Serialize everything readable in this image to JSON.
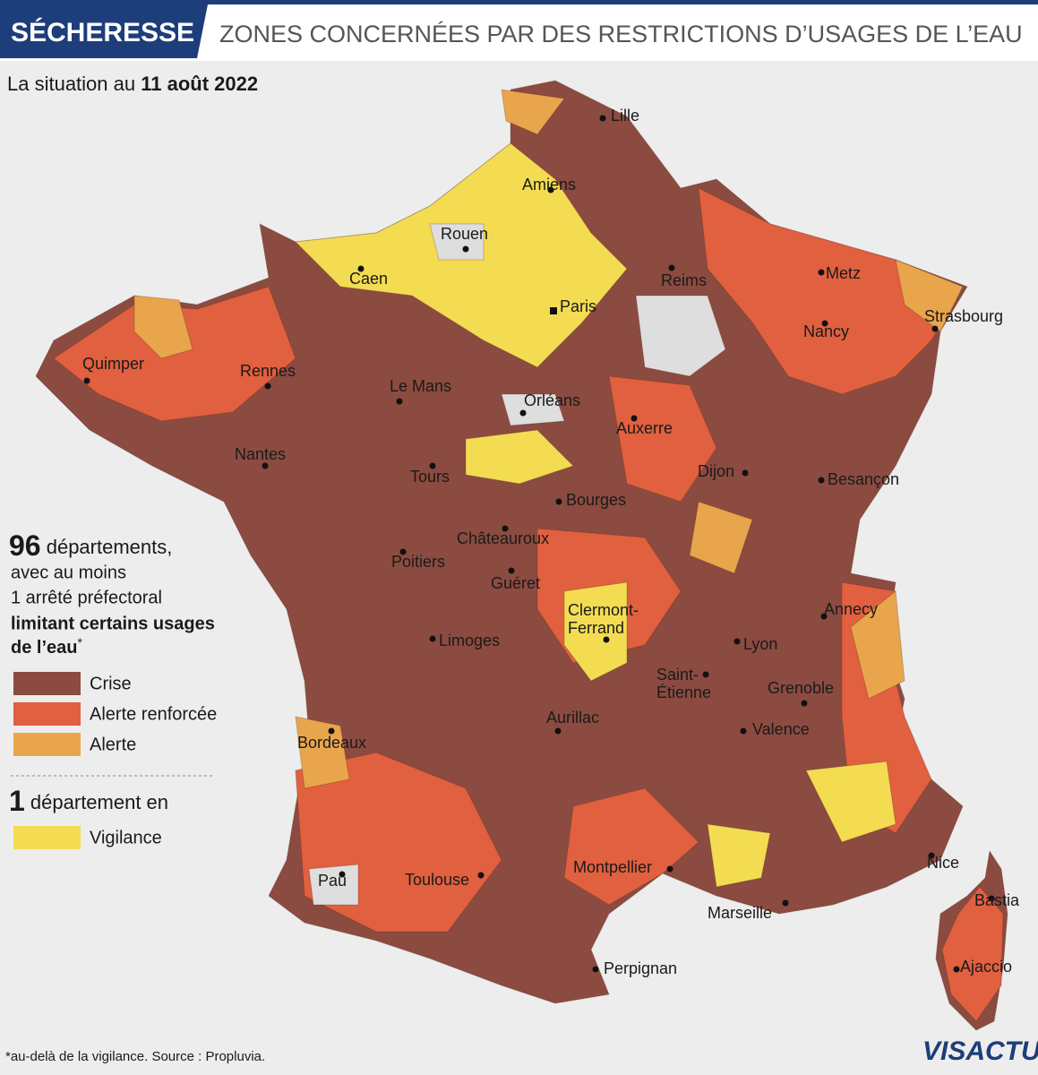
{
  "header": {
    "tag": "SÉCHERESSE",
    "title": "ZONES CONCERNÉES PAR DES RESTRICTIONS D’USAGES DE L’EAU"
  },
  "subtitle": {
    "prefix": "La situation au",
    "date": "11 août 2022"
  },
  "legend": {
    "count": 96,
    "count_text": "départements,",
    "line2": "avec au moins",
    "line3": "1 arrêté préfectoral",
    "bold1": "limitant certains usages",
    "bold2": "de l’eau",
    "asterisk": "*",
    "items": [
      {
        "label": "Crise",
        "color": "#8c4b40"
      },
      {
        "label": "Alerte renforcée",
        "color": "#e0603f"
      },
      {
        "label": "Alerte",
        "color": "#e9a54c"
      }
    ],
    "count2": 1,
    "count2_text": "département en",
    "vigilance": {
      "label": "Vigilance",
      "color": "#f3dc52"
    }
  },
  "cities": [
    [
      "Lille"
    ],
    [
      "Amiens"
    ],
    [
      "Rouen"
    ],
    [
      "Caen"
    ],
    [
      "Reims"
    ],
    [
      "Metz"
    ],
    [
      "Paris"
    ],
    [
      "Strasbourg"
    ],
    [
      "Nancy"
    ],
    [
      "Quimper"
    ],
    [
      "Rennes"
    ],
    [
      "Le Mans"
    ],
    [
      "Orléans"
    ],
    [
      "Auxerre"
    ],
    [
      "Nantes"
    ],
    [
      "Tours"
    ],
    [
      "Dijon"
    ],
    [
      "Besançon"
    ],
    [
      "Bourges"
    ],
    [
      "Châteauroux"
    ],
    [
      "Poitiers"
    ],
    [
      "Guéret"
    ],
    [
      "Clermont-",
      "Ferrand"
    ],
    [
      "Annecy"
    ],
    [
      "Limoges"
    ],
    [
      "Lyon"
    ],
    [
      "Saint-",
      "Étienne"
    ],
    [
      "Grenoble"
    ],
    [
      "Aurillac"
    ],
    [
      "Valence"
    ],
    [
      "Bordeaux"
    ],
    [
      "Nice"
    ],
    [
      "Montpellier"
    ],
    [
      "Toulouse"
    ],
    [
      "Pau"
    ],
    [
      "Marseille"
    ],
    [
      "Bastia"
    ],
    [
      "Perpignan"
    ],
    [
      "Ajaccio"
    ]
  ],
  "footnote": "*au-delà de la vigilance. Source : Propluvia.",
  "logo": "VISACTU"
}
